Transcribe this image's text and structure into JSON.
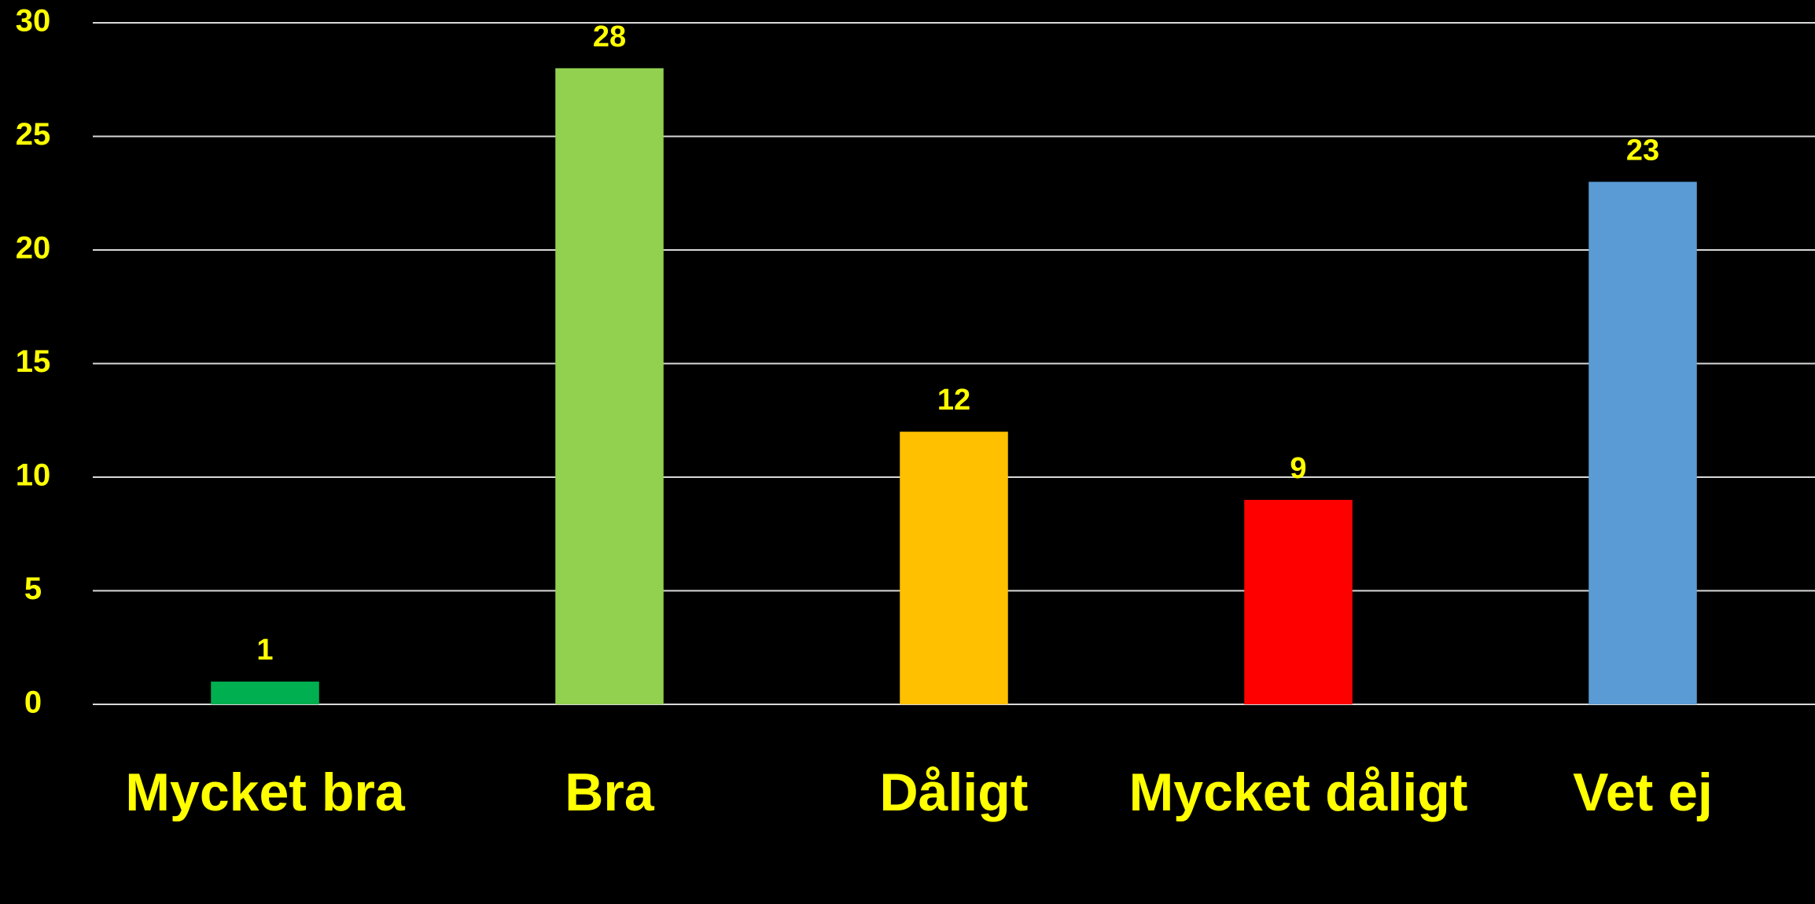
{
  "chart_data": {
    "type": "bar",
    "categories": [
      "Mycket bra",
      "Bra",
      "Dåligt",
      "Mycket dåligt",
      "Vet ej"
    ],
    "values": [
      1,
      28,
      12,
      9,
      23
    ],
    "colors": [
      "#00b050",
      "#92d050",
      "#ffc000",
      "#ff0000",
      "#5b9bd5"
    ],
    "ylim": [
      0,
      30
    ],
    "yticks": [
      0,
      5,
      10,
      15,
      20,
      25,
      30
    ],
    "grid": true
  }
}
